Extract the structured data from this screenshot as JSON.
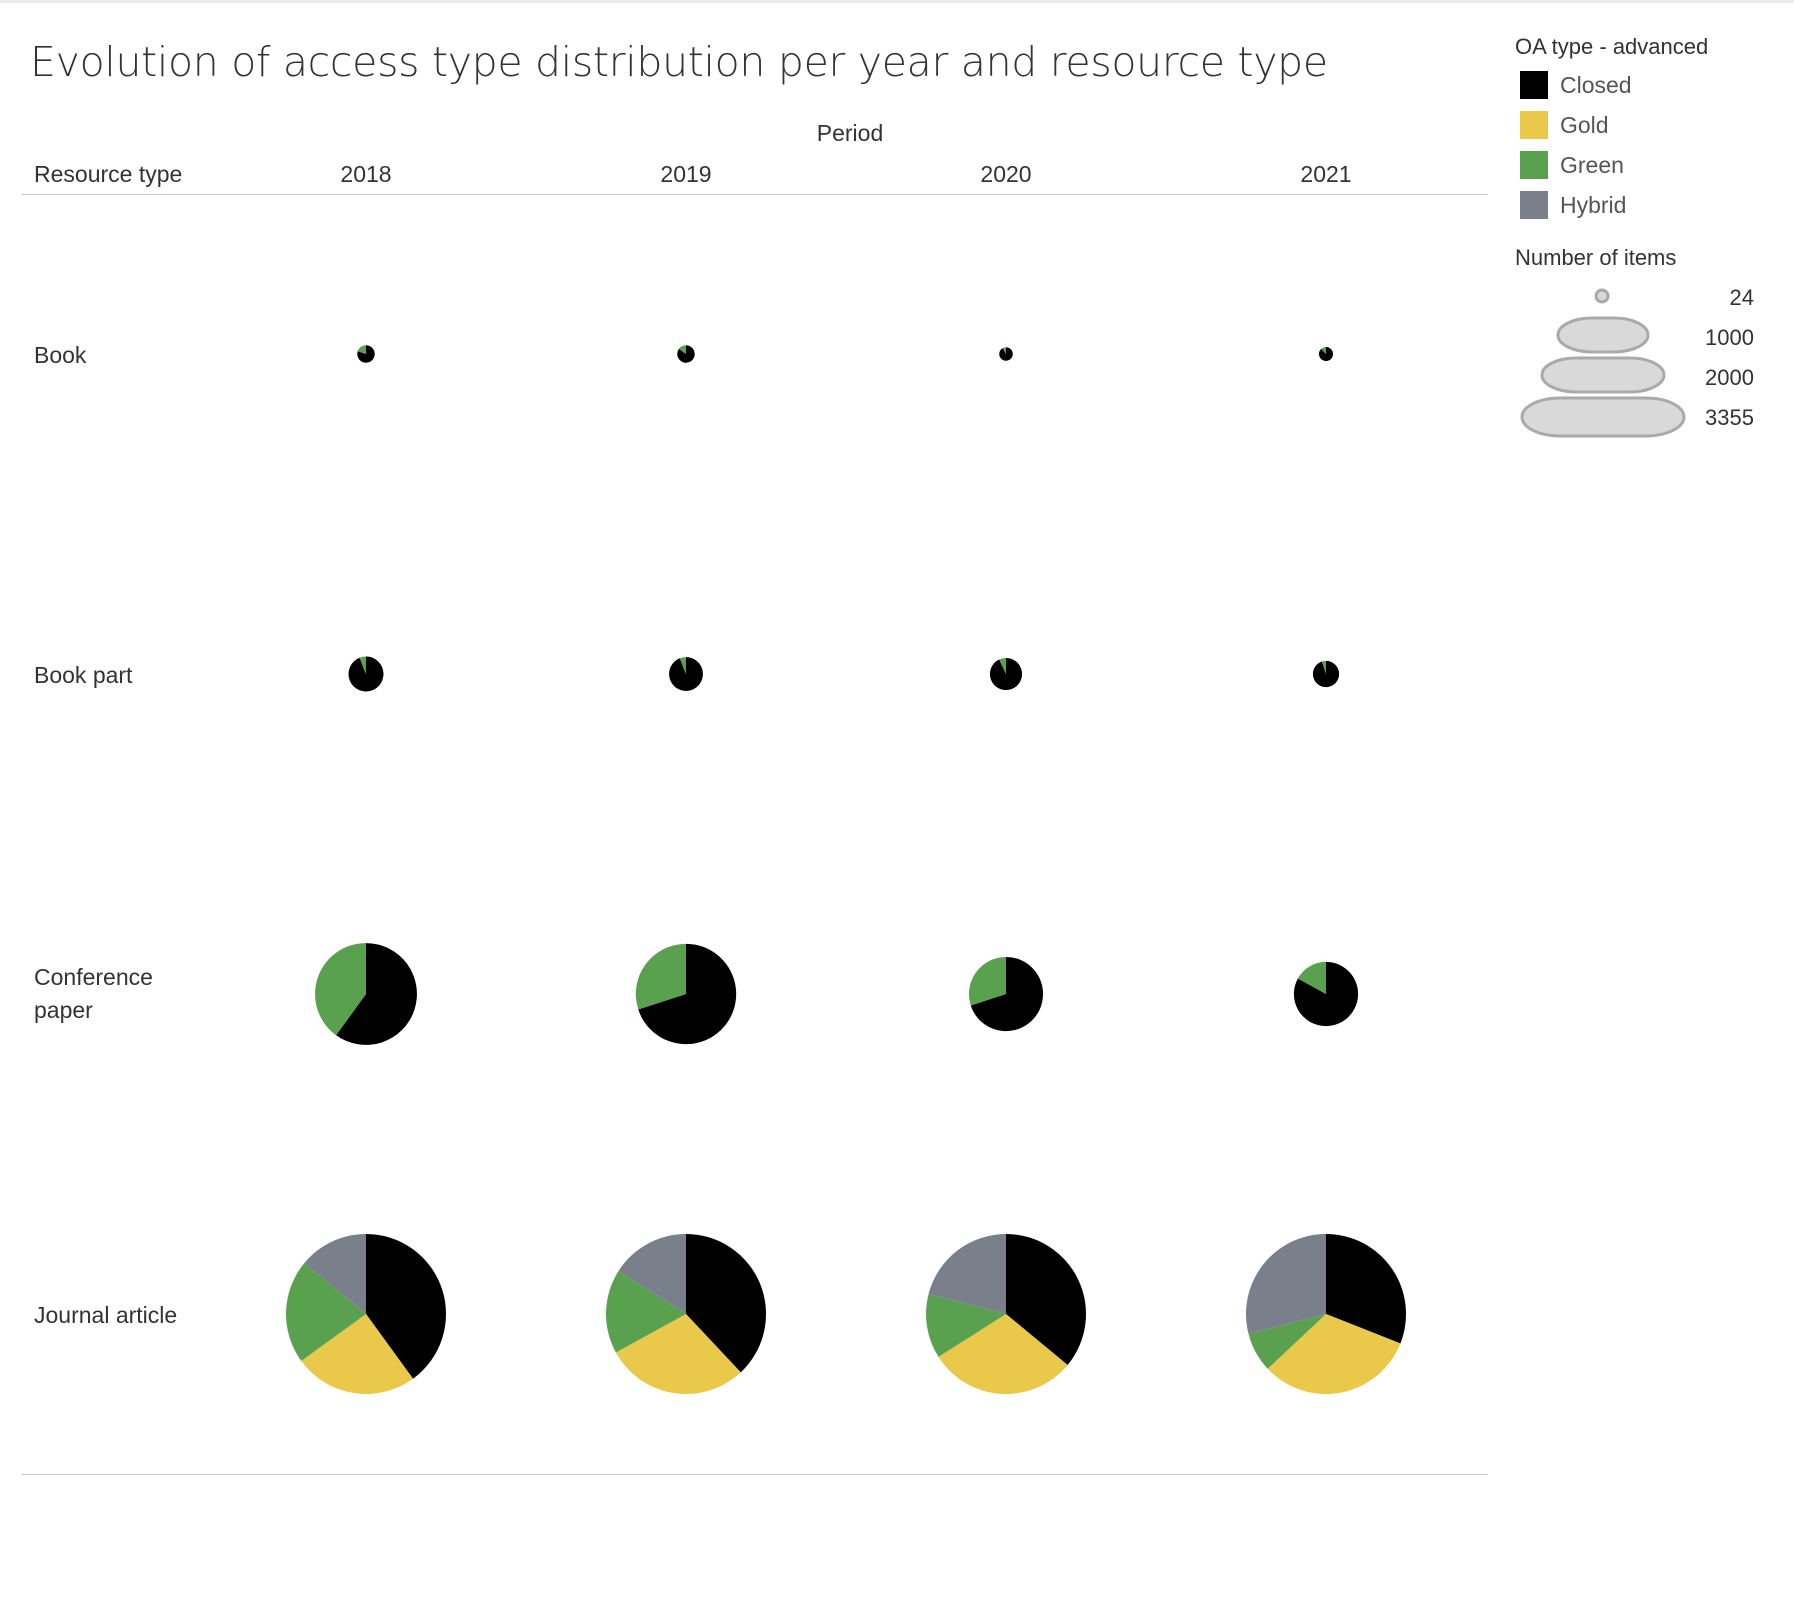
{
  "title": "Evolution of access type distribution per year and resource type",
  "header": {
    "period_label": "Period",
    "resource_type_label": "Resource type",
    "years": [
      "2018",
      "2019",
      "2020",
      "2021"
    ]
  },
  "legend": {
    "title": "OA type - advanced",
    "items": [
      {
        "label": "Closed",
        "color": "#000000"
      },
      {
        "label": "Gold",
        "color": "#e9c84a"
      },
      {
        "label": "Green",
        "color": "#59a14f"
      },
      {
        "label": "Hybrid",
        "color": "#79808c"
      }
    ],
    "size_title": "Number of items",
    "size_values": [
      "24",
      "1000",
      "2000",
      "3355"
    ]
  },
  "chart_data": {
    "type": "pie",
    "title": "Evolution of access type distribution per year and resource type",
    "columns": [
      "2018",
      "2019",
      "2020",
      "2021"
    ],
    "rows": [
      "Book",
      "Book part",
      "Conference paper",
      "Journal article"
    ],
    "categories": [
      "Closed",
      "Gold",
      "Green",
      "Hybrid"
    ],
    "size_range": [
      24,
      3355
    ],
    "cells": [
      {
        "row": "Book",
        "year": "2018",
        "total": 40,
        "shares": {
          "Closed": 0.8,
          "Gold": 0,
          "Green": 0.2,
          "Hybrid": 0
        }
      },
      {
        "row": "Book",
        "year": "2019",
        "total": 40,
        "shares": {
          "Closed": 0.85,
          "Gold": 0,
          "Green": 0.15,
          "Hybrid": 0
        }
      },
      {
        "row": "Book",
        "year": "2020",
        "total": 24,
        "shares": {
          "Closed": 0.92,
          "Gold": 0,
          "Green": 0.08,
          "Hybrid": 0
        }
      },
      {
        "row": "Book",
        "year": "2021",
        "total": 26,
        "shares": {
          "Closed": 0.88,
          "Gold": 0,
          "Green": 0.12,
          "Hybrid": 0
        }
      },
      {
        "row": "Book part",
        "year": "2018",
        "total": 160,
        "shares": {
          "Closed": 0.94,
          "Gold": 0,
          "Green": 0.06,
          "Hybrid": 0
        }
      },
      {
        "row": "Book part",
        "year": "2019",
        "total": 150,
        "shares": {
          "Closed": 0.94,
          "Gold": 0,
          "Green": 0.06,
          "Hybrid": 0
        }
      },
      {
        "row": "Book part",
        "year": "2020",
        "total": 135,
        "shares": {
          "Closed": 0.93,
          "Gold": 0,
          "Green": 0.07,
          "Hybrid": 0
        }
      },
      {
        "row": "Book part",
        "year": "2021",
        "total": 90,
        "shares": {
          "Closed": 0.95,
          "Gold": 0,
          "Green": 0.05,
          "Hybrid": 0
        }
      },
      {
        "row": "Conference paper",
        "year": "2018",
        "total": 1360,
        "shares": {
          "Closed": 0.6,
          "Gold": 0,
          "Green": 0.4,
          "Hybrid": 0
        }
      },
      {
        "row": "Conference paper",
        "year": "2019",
        "total": 1320,
        "shares": {
          "Closed": 0.7,
          "Gold": 0,
          "Green": 0.3,
          "Hybrid": 0
        }
      },
      {
        "row": "Conference paper",
        "year": "2020",
        "total": 720,
        "shares": {
          "Closed": 0.7,
          "Gold": 0,
          "Green": 0.3,
          "Hybrid": 0
        }
      },
      {
        "row": "Conference paper",
        "year": "2021",
        "total": 540,
        "shares": {
          "Closed": 0.83,
          "Gold": 0,
          "Green": 0.17,
          "Hybrid": 0
        }
      },
      {
        "row": "Journal article",
        "year": "2018",
        "total": 3355,
        "shares": {
          "Closed": 0.4,
          "Gold": 0.25,
          "Green": 0.21,
          "Hybrid": 0.14
        }
      },
      {
        "row": "Journal article",
        "year": "2019",
        "total": 3355,
        "shares": {
          "Closed": 0.38,
          "Gold": 0.29,
          "Green": 0.17,
          "Hybrid": 0.16
        }
      },
      {
        "row": "Journal article",
        "year": "2020",
        "total": 3355,
        "shares": {
          "Closed": 0.36,
          "Gold": 0.3,
          "Green": 0.13,
          "Hybrid": 0.21
        }
      },
      {
        "row": "Journal article",
        "year": "2021",
        "total": 3355,
        "shares": {
          "Closed": 0.31,
          "Gold": 0.32,
          "Green": 0.08,
          "Hybrid": 0.29
        }
      }
    ]
  }
}
